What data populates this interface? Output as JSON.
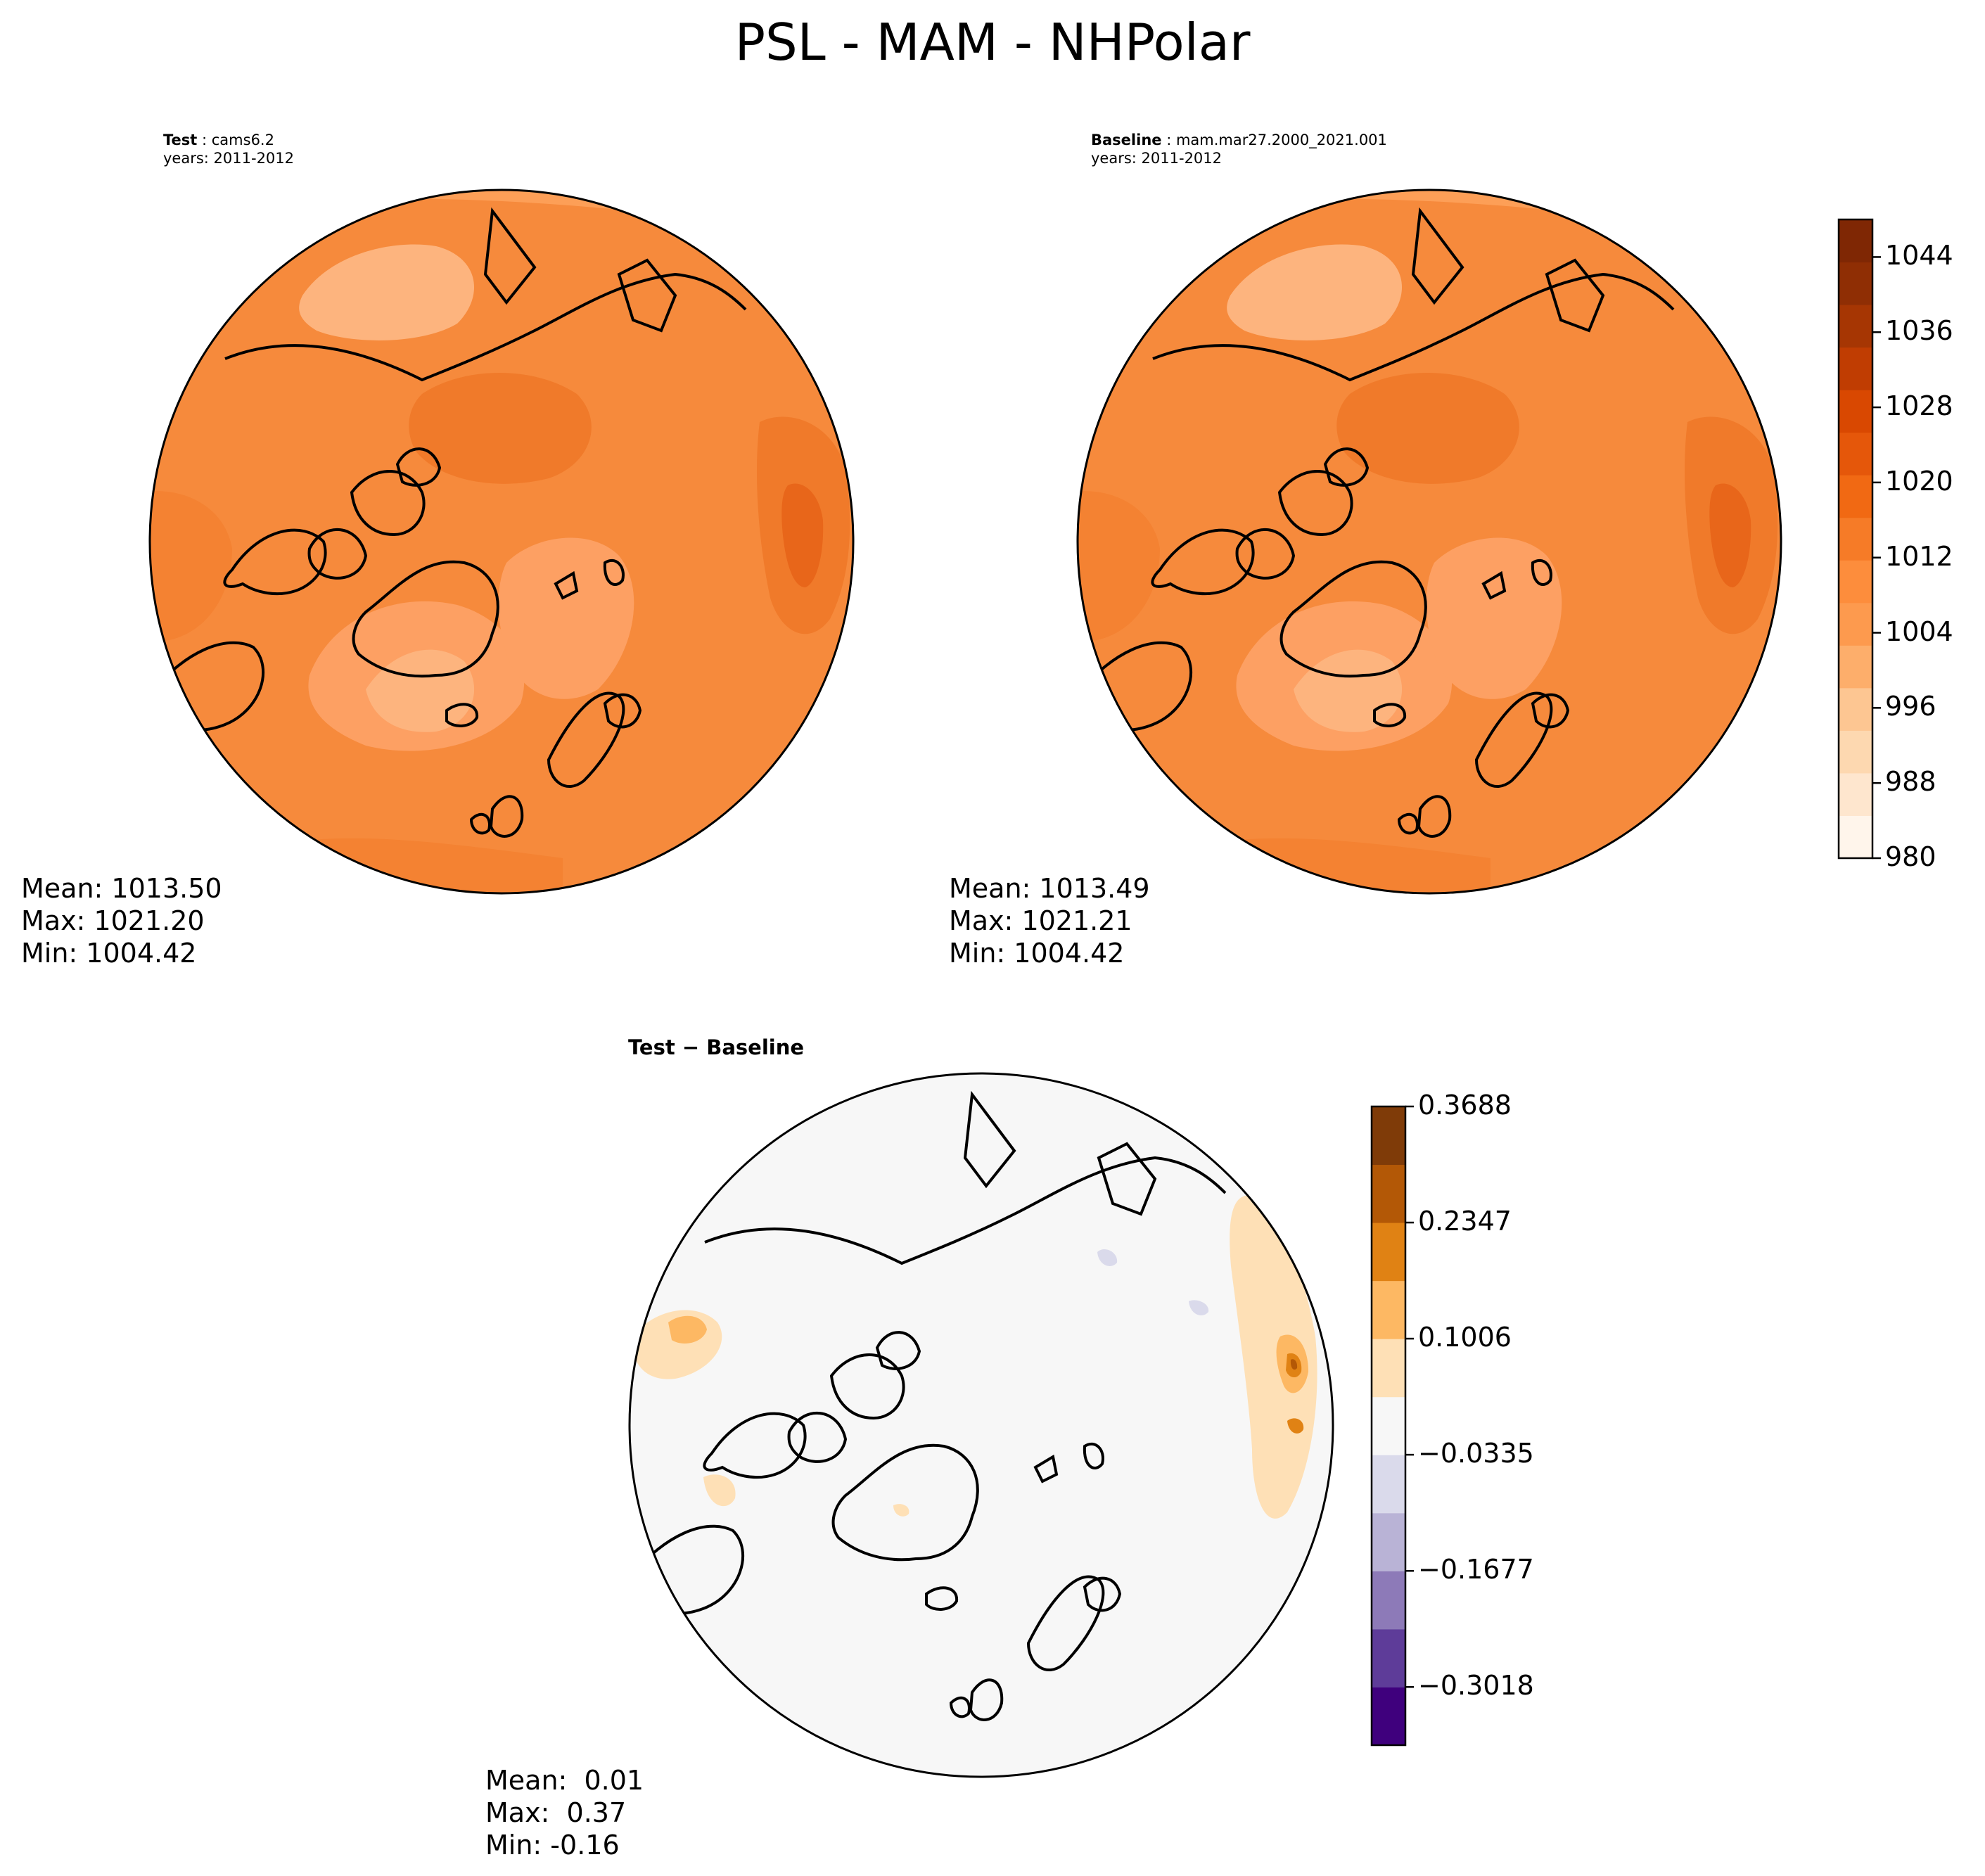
{
  "title": "PSL - MAM - NHPolar",
  "colors": {
    "psl_levels": [
      "#fff5eb",
      "#fee6ce",
      "#fdd8b0",
      "#fdc692",
      "#fdae6b",
      "#fd9a4e",
      "#fd8d3c",
      "#f67b27",
      "#f16913",
      "#e5570a",
      "#d94801",
      "#c03d02",
      "#a63603",
      "#8f2e04",
      "#7f2704"
    ],
    "diff_levels": [
      "#3f007d",
      "#5e3c99",
      "#8d7ab8",
      "#b9b3d6",
      "#dadaeb",
      "#f7f7f7",
      "#fee0b6",
      "#fdb863",
      "#e08214",
      "#b35806",
      "#7f3b08"
    ],
    "coast": "#000000"
  },
  "chart_data": [
    {
      "type": "heatmap",
      "panel": "test",
      "title_bold": "Test",
      "title_rest": " : cams6.2",
      "subtitle": "years: 2011-2012",
      "projection": "north polar stereographic",
      "variable": "PSL",
      "stats": {
        "mean": "Mean: 1013.50",
        "max": "Max: 1021.20",
        "min": "Min: 1004.42"
      }
    },
    {
      "type": "heatmap",
      "panel": "baseline",
      "title_bold": "Baseline",
      "title_rest": " : mam.mar27.2000_2021.001",
      "subtitle": "years: 2011-2012",
      "projection": "north polar stereographic",
      "variable": "PSL",
      "stats": {
        "mean": "Mean: 1013.49",
        "max": "Max: 1021.21",
        "min": "Min: 1004.42"
      }
    },
    {
      "type": "heatmap",
      "panel": "difference",
      "title": "Test − Baseline",
      "projection": "north polar stereographic",
      "stats": {
        "mean": "Mean:  0.01",
        "max": "Max:  0.37",
        "min": "Min: -0.16"
      }
    }
  ],
  "colorbars": {
    "psl": {
      "range": [
        980,
        1048
      ],
      "ticks": [
        "1044",
        "1036",
        "1028",
        "1020",
        "1012",
        "1004",
        "996",
        "988",
        "980"
      ],
      "tick_values": [
        1044,
        1036,
        1028,
        1020,
        1012,
        1004,
        996,
        988,
        980
      ]
    },
    "diff": {
      "range": [
        -0.369,
        0.3688
      ],
      "ticks": [
        "0.3688",
        "0.2347",
        "0.1006",
        "−0.0335",
        "−0.1677",
        "−0.3018"
      ],
      "tick_values": [
        0.3688,
        0.2347,
        0.1006,
        -0.0335,
        -0.1677,
        -0.3018
      ]
    }
  }
}
